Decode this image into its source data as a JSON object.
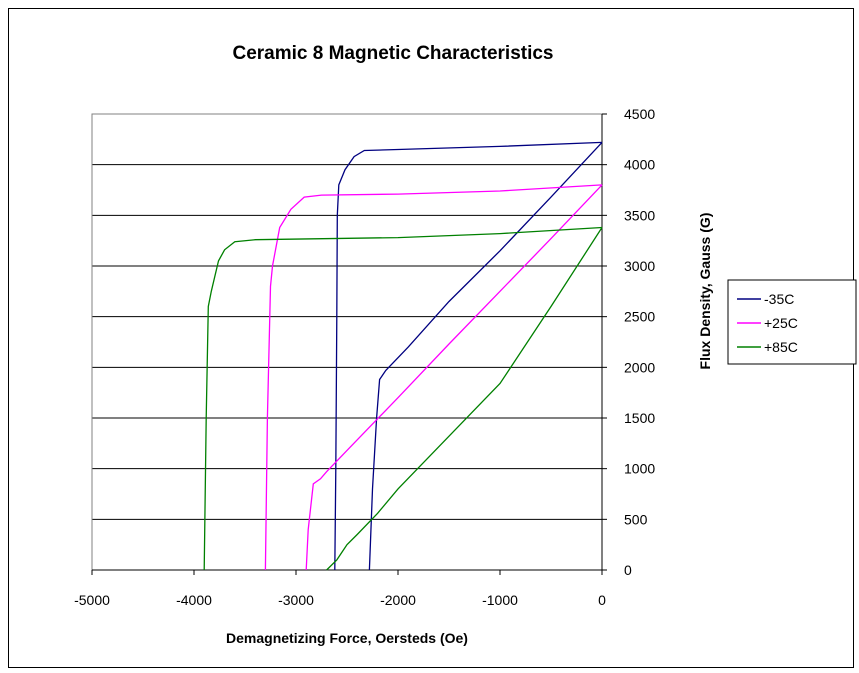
{
  "chart_data": {
    "type": "line",
    "title": "Ceramic 8 Magnetic Characteristics",
    "xlabel": "Demagnetizing Force, Oersteds (Oe)",
    "ylabel": "Flux Density, Gauss (G)",
    "xlim": [
      -5000,
      0
    ],
    "ylim": [
      0,
      4500
    ],
    "xticks": [
      -5000,
      -4000,
      -3000,
      -2000,
      -1000,
      0
    ],
    "yticks": [
      0,
      500,
      1000,
      1500,
      2000,
      2500,
      3000,
      3500,
      4000,
      4500
    ],
    "grid": "horizontal",
    "legend_position": "right",
    "series": [
      {
        "name": "-35C",
        "color": "#000080",
        "intrinsic": [
          [
            -2620,
            0
          ],
          [
            -2610,
            1000
          ],
          [
            -2600,
            2500
          ],
          [
            -2595,
            3500
          ],
          [
            -2580,
            3800
          ],
          [
            -2520,
            3950
          ],
          [
            -2430,
            4080
          ],
          [
            -2330,
            4140
          ],
          [
            -2000,
            4150
          ],
          [
            -1000,
            4180
          ],
          [
            0,
            4220
          ]
        ],
        "normal": [
          [
            -2280,
            0
          ],
          [
            -2250,
            800
          ],
          [
            -2210,
            1500
          ],
          [
            -2180,
            1880
          ],
          [
            -2120,
            1970
          ],
          [
            -1900,
            2200
          ],
          [
            -1500,
            2650
          ],
          [
            -1000,
            3150
          ],
          [
            -500,
            3680
          ],
          [
            0,
            4220
          ]
        ]
      },
      {
        "name": "+25C",
        "color": "#FF00FF",
        "intrinsic": [
          [
            -3300,
            0
          ],
          [
            -3280,
            1500
          ],
          [
            -3250,
            2800
          ],
          [
            -3230,
            3000
          ],
          [
            -3160,
            3380
          ],
          [
            -3050,
            3560
          ],
          [
            -2920,
            3680
          ],
          [
            -2750,
            3700
          ],
          [
            -2000,
            3710
          ],
          [
            -1000,
            3740
          ],
          [
            0,
            3800
          ]
        ],
        "normal": [
          [
            -2900,
            0
          ],
          [
            -2880,
            400
          ],
          [
            -2830,
            850
          ],
          [
            -2760,
            900
          ],
          [
            -2700,
            970
          ],
          [
            -2500,
            1180
          ],
          [
            -2000,
            1700
          ],
          [
            -1500,
            2230
          ],
          [
            -1000,
            2750
          ],
          [
            -500,
            3270
          ],
          [
            0,
            3800
          ]
        ]
      },
      {
        "name": "+85C",
        "color": "#008000",
        "intrinsic": [
          [
            -3900,
            0
          ],
          [
            -3880,
            1500
          ],
          [
            -3860,
            2600
          ],
          [
            -3830,
            2750
          ],
          [
            -3760,
            3050
          ],
          [
            -3700,
            3160
          ],
          [
            -3600,
            3240
          ],
          [
            -3400,
            3260
          ],
          [
            -2000,
            3280
          ],
          [
            -1000,
            3320
          ],
          [
            0,
            3380
          ]
        ],
        "normal": [
          [
            -2700,
            0
          ],
          [
            -2600,
            100
          ],
          [
            -2500,
            250
          ],
          [
            -2400,
            350
          ],
          [
            -2200,
            560
          ],
          [
            -2000,
            800
          ],
          [
            -1500,
            1320
          ],
          [
            -1000,
            1840
          ],
          [
            -500,
            2600
          ],
          [
            0,
            3380
          ]
        ]
      }
    ]
  }
}
